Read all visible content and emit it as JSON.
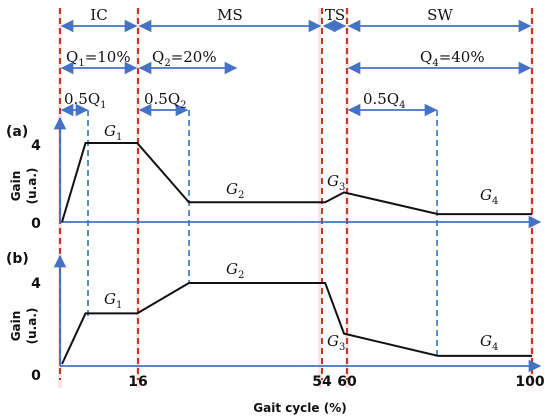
{
  "phases": [
    {
      "label": "IC"
    },
    {
      "label": "MS"
    },
    {
      "label": "TS"
    },
    {
      "label": "SW"
    }
  ],
  "q_labels": {
    "q1": {
      "main": "Q",
      "sub": "1",
      "rest": "=10%"
    },
    "q2": {
      "main": "Q",
      "sub": "2",
      "rest": "=20%"
    },
    "q4": {
      "main": "Q",
      "sub": "4",
      "rest": "=40%"
    }
  },
  "half_labels": {
    "h1": {
      "main": "0.5Q",
      "sub": "1"
    },
    "h2": {
      "main": "0.5Q",
      "sub": "2"
    },
    "h4": {
      "main": "0.5Q",
      "sub": "4"
    }
  },
  "panels": {
    "a": {
      "tag": "(a)",
      "gain_title": "Gain",
      "unit_title": "(u.a.)",
      "y_top_tick": "4",
      "y_zero_tick": "0",
      "gain_labels": [
        {
          "main": "G",
          "sub": "1"
        },
        {
          "main": "G",
          "sub": "2"
        },
        {
          "main": "G",
          "sub": "3"
        },
        {
          "main": "G",
          "sub": "4"
        }
      ],
      "curve": [
        [
          0,
          0
        ],
        [
          5,
          4
        ],
        [
          16,
          4
        ],
        [
          27,
          1
        ],
        [
          56,
          1
        ],
        [
          60,
          1.5
        ],
        [
          80,
          0.4
        ],
        [
          100,
          0.4
        ]
      ]
    },
    "b": {
      "tag": "(b)",
      "gain_title": "Gain",
      "unit_title": "(u.a.)",
      "y_top_tick": "4",
      "y_zero_tick": "0",
      "gain_labels": [
        {
          "main": "G",
          "sub": "1"
        },
        {
          "main": "G",
          "sub": "2"
        },
        {
          "main": "G",
          "sub": "3"
        },
        {
          "main": "G",
          "sub": "4"
        }
      ],
      "curve": [
        [
          0,
          0
        ],
        [
          5,
          2.5
        ],
        [
          16,
          2.5
        ],
        [
          27,
          4
        ],
        [
          56,
          4
        ],
        [
          60,
          1.5
        ],
        [
          80,
          0.4
        ],
        [
          100,
          0.4
        ]
      ]
    }
  },
  "x_ticks": [
    "16",
    "54",
    "60",
    "100"
  ],
  "x_title": "Gait cycle (%)",
  "colors": {
    "arrow": "#4472c4",
    "boundary": "#c0392b",
    "guide": "#2e75b6",
    "curve": "#111111",
    "band": "#fbe3e6"
  }
}
